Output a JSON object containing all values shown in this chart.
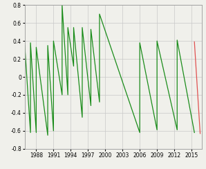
{
  "title": "",
  "xlim": [
    1986.0,
    2016.8
  ],
  "ylim": [
    -0.8,
    0.8
  ],
  "yticks": [
    -0.8,
    -0.6,
    -0.4,
    -0.2,
    0.0,
    0.2,
    0.4,
    0.6,
    0.8
  ],
  "xticks": [
    1988,
    1991,
    1994,
    1997,
    2000,
    2003,
    2006,
    2009,
    2012,
    2015
  ],
  "grid_color": "#c8c8c8",
  "line_color_green": "#1a8c1a",
  "line_color_red": "#e05050",
  "bg_color": "#f0f0eb",
  "segments_green": [
    {
      "x": [
        1986.0,
        1987.0,
        1987.0,
        1988.0,
        1988.0,
        1990.0,
        1990.0,
        1991.0,
        1991.0,
        1992.5,
        1992.5,
        1993.5,
        1993.5,
        1994.5,
        1994.5,
        1996.0,
        1996.0,
        1997.5,
        1997.5,
        1999.0,
        1999.0,
        2006.0,
        2006.0,
        2009.0,
        2009.0,
        2012.5,
        2012.5,
        2015.5
      ],
      "y": [
        0.35,
        -0.62,
        0.38,
        -0.62,
        0.33,
        -0.65,
        0.35,
        -0.6,
        0.4,
        -0.2,
        0.8,
        -0.2,
        0.55,
        0.12,
        0.55,
        -0.45,
        0.55,
        -0.32,
        0.53,
        -0.28,
        0.7,
        -0.62,
        0.38,
        -0.59,
        0.4,
        -0.59,
        0.41,
        -0.62
      ]
    }
  ],
  "segment_red": {
    "x": [
      2015.5,
      2016.5
    ],
    "y": [
      0.39,
      -0.63
    ]
  }
}
